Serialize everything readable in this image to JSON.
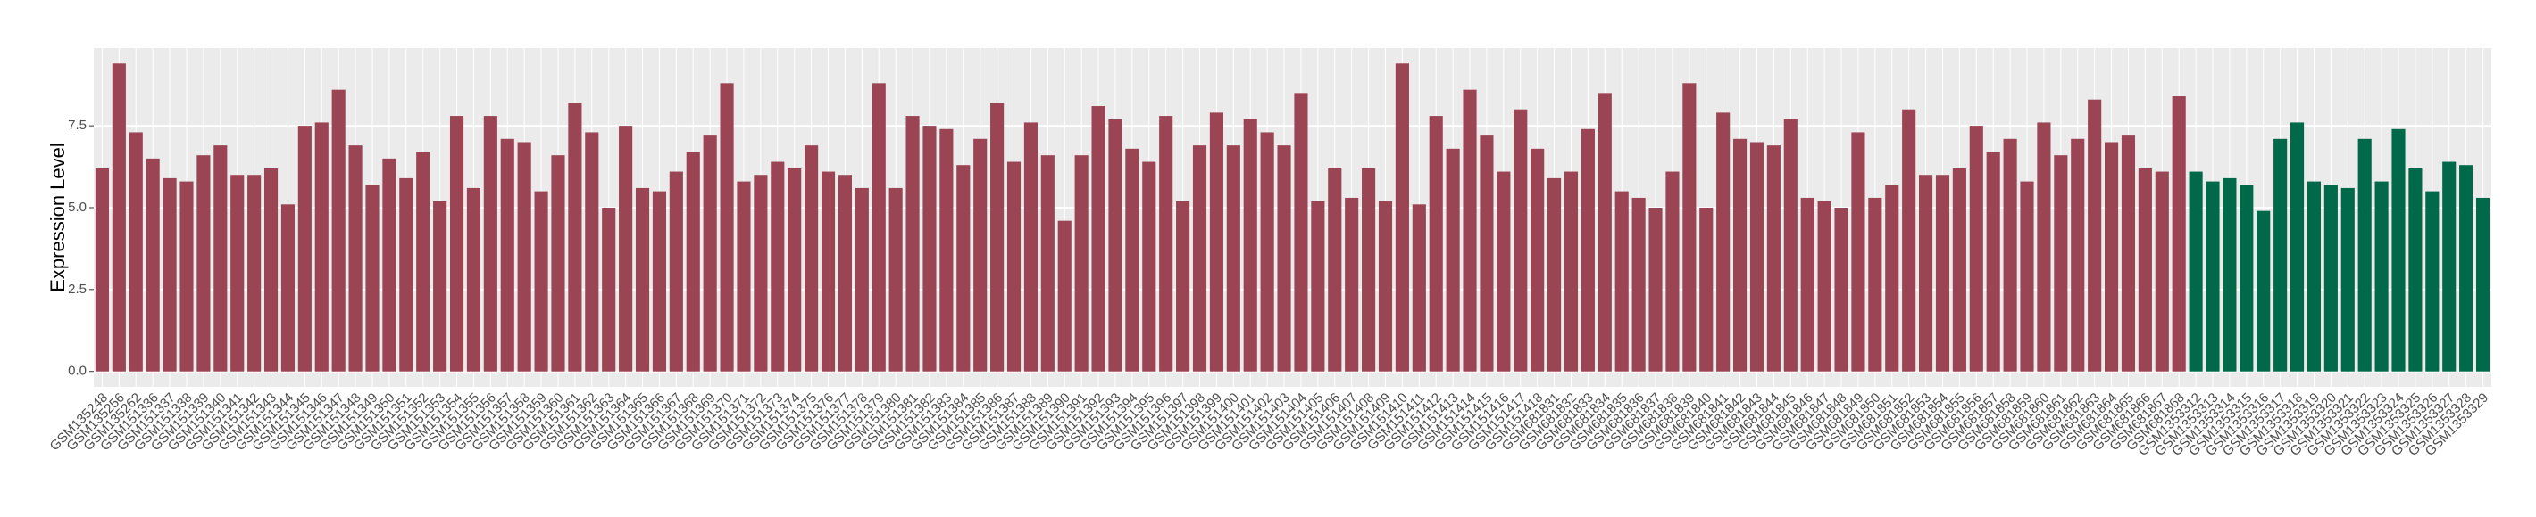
{
  "chart_data": {
    "type": "bar",
    "y_label": "Expression Level",
    "categories": [
      "GSM135248",
      "GSM135256",
      "GSM135262",
      "GSM151336",
      "GSM151337",
      "GSM151338",
      "GSM151339",
      "GSM151340",
      "GSM151341",
      "GSM151342",
      "GSM151343",
      "GSM151344",
      "GSM151345",
      "GSM151346",
      "GSM151347",
      "GSM151348",
      "GSM151349",
      "GSM151350",
      "GSM151351",
      "GSM151352",
      "GSM151353",
      "GSM151354",
      "GSM151355",
      "GSM151356",
      "GSM151357",
      "GSM151358",
      "GSM151359",
      "GSM151360",
      "GSM151361",
      "GSM151362",
      "GSM151363",
      "GSM151364",
      "GSM151365",
      "GSM151366",
      "GSM151367",
      "GSM151368",
      "GSM151369",
      "GSM151370",
      "GSM151371",
      "GSM151372",
      "GSM151373",
      "GSM151374",
      "GSM151375",
      "GSM151376",
      "GSM151377",
      "GSM151378",
      "GSM151379",
      "GSM151380",
      "GSM151381",
      "GSM151382",
      "GSM151383",
      "GSM151384",
      "GSM151385",
      "GSM151386",
      "GSM151387",
      "GSM151388",
      "GSM151389",
      "GSM151390",
      "GSM151391",
      "GSM151392",
      "GSM151393",
      "GSM151394",
      "GSM151395",
      "GSM151396",
      "GSM151397",
      "GSM151398",
      "GSM151399",
      "GSM151400",
      "GSM151401",
      "GSM151402",
      "GSM151403",
      "GSM151404",
      "GSM151405",
      "GSM151406",
      "GSM151407",
      "GSM151408",
      "GSM151409",
      "GSM151410",
      "GSM151411",
      "GSM151412",
      "GSM151413",
      "GSM151414",
      "GSM151415",
      "GSM151416",
      "GSM151417",
      "GSM151418",
      "GSM681831",
      "GSM681832",
      "GSM681833",
      "GSM681834",
      "GSM681835",
      "GSM681836",
      "GSM681837",
      "GSM681838",
      "GSM681839",
      "GSM681840",
      "GSM681841",
      "GSM681842",
      "GSM681843",
      "GSM681844",
      "GSM681845",
      "GSM681846",
      "GSM681847",
      "GSM681848",
      "GSM681849",
      "GSM681850",
      "GSM681851",
      "GSM681852",
      "GSM681853",
      "GSM681854",
      "GSM681855",
      "GSM681856",
      "GSM681857",
      "GSM681858",
      "GSM681859",
      "GSM681860",
      "GSM681861",
      "GSM681862",
      "GSM681863",
      "GSM681864",
      "GSM681865",
      "GSM681866",
      "GSM681867",
      "GSM681868",
      "GSM1353312",
      "GSM1353313",
      "GSM1353314",
      "GSM1353315",
      "GSM1353316",
      "GSM1353317",
      "GSM1353318",
      "GSM1353319",
      "GSM1353320",
      "GSM1353321",
      "GSM1353322",
      "GSM1353323",
      "GSM1353324",
      "GSM1353325",
      "GSM1353326",
      "GSM1353327",
      "GSM1353328",
      "GSM1353329"
    ],
    "values": [
      6.2,
      9.4,
      7.3,
      6.5,
      5.9,
      5.8,
      6.6,
      6.9,
      6.0,
      6.0,
      6.2,
      5.1,
      7.5,
      7.6,
      8.6,
      6.9,
      5.7,
      6.5,
      5.9,
      6.7,
      5.2,
      7.8,
      5.6,
      7.8,
      7.1,
      7.0,
      5.5,
      6.6,
      8.2,
      7.3,
      5.0,
      7.5,
      5.6,
      5.5,
      6.1,
      6.7,
      7.2,
      8.8,
      5.8,
      6.0,
      6.4,
      6.2,
      6.9,
      6.1,
      6.0,
      5.6,
      8.8,
      5.6,
      7.8,
      7.5,
      7.4,
      6.3,
      7.1,
      8.2,
      6.4,
      7.6,
      6.6,
      4.6,
      6.6,
      8.1,
      7.7,
      6.8,
      6.4,
      7.8,
      5.2,
      6.9,
      7.9,
      6.9,
      7.7,
      7.3,
      6.9,
      8.5,
      5.2,
      6.2,
      5.3,
      6.2,
      5.2,
      9.4,
      5.1,
      7.8,
      6.8,
      8.6,
      7.2,
      6.1,
      8.0,
      6.8,
      5.9,
      6.1,
      7.4,
      8.5,
      5.5,
      5.3,
      5.0,
      6.1,
      8.8,
      5.0,
      7.9,
      7.1,
      7.0,
      6.9,
      7.7,
      5.3,
      5.2,
      5.0,
      7.3,
      5.3,
      5.7,
      8.0,
      6.0,
      6.0,
      6.2,
      7.5,
      6.7,
      7.1,
      5.8,
      7.6,
      6.6,
      7.1,
      8.3,
      7.0,
      7.2,
      6.2,
      6.1,
      8.4,
      6.1,
      5.8,
      5.9,
      5.7,
      4.9,
      7.1,
      7.6,
      5.8,
      5.7,
      5.6,
      7.1,
      5.8,
      7.4,
      6.2,
      5.5,
      6.4,
      6.3,
      5.3
    ],
    "colors": [
      "#9b4453",
      "#9b4453",
      "#9b4453",
      "#9b4453",
      "#9b4453",
      "#9b4453",
      "#9b4453",
      "#9b4453",
      "#9b4453",
      "#9b4453",
      "#9b4453",
      "#9b4453",
      "#9b4453",
      "#9b4453",
      "#9b4453",
      "#9b4453",
      "#9b4453",
      "#9b4453",
      "#9b4453",
      "#9b4453",
      "#9b4453",
      "#9b4453",
      "#9b4453",
      "#9b4453",
      "#9b4453",
      "#9b4453",
      "#9b4453",
      "#9b4453",
      "#9b4453",
      "#9b4453",
      "#9b4453",
      "#9b4453",
      "#9b4453",
      "#9b4453",
      "#9b4453",
      "#9b4453",
      "#9b4453",
      "#9b4453",
      "#9b4453",
      "#9b4453",
      "#9b4453",
      "#9b4453",
      "#9b4453",
      "#9b4453",
      "#9b4453",
      "#9b4453",
      "#9b4453",
      "#9b4453",
      "#9b4453",
      "#9b4453",
      "#9b4453",
      "#9b4453",
      "#9b4453",
      "#9b4453",
      "#9b4453",
      "#9b4453",
      "#9b4453",
      "#9b4453",
      "#9b4453",
      "#9b4453",
      "#9b4453",
      "#9b4453",
      "#9b4453",
      "#9b4453",
      "#9b4453",
      "#9b4453",
      "#9b4453",
      "#9b4453",
      "#9b4453",
      "#9b4453",
      "#9b4453",
      "#9b4453",
      "#9b4453",
      "#9b4453",
      "#9b4453",
      "#9b4453",
      "#9b4453",
      "#9b4453",
      "#9b4453",
      "#9b4453",
      "#9b4453",
      "#9b4453",
      "#9b4453",
      "#9b4453",
      "#9b4453",
      "#9b4453",
      "#9b4453",
      "#9b4453",
      "#9b4453",
      "#9b4453",
      "#9b4453",
      "#9b4453",
      "#9b4453",
      "#9b4453",
      "#9b4453",
      "#9b4453",
      "#9b4453",
      "#9b4453",
      "#9b4453",
      "#9b4453",
      "#9b4453",
      "#9b4453",
      "#9b4453",
      "#9b4453",
      "#9b4453",
      "#9b4453",
      "#9b4453",
      "#9b4453",
      "#9b4453",
      "#9b4453",
      "#9b4453",
      "#9b4453",
      "#9b4453",
      "#9b4453",
      "#9b4453",
      "#9b4453",
      "#9b4453",
      "#9b4453",
      "#9b4453",
      "#9b4453",
      "#9b4453",
      "#9b4453",
      "#9b4453",
      "#9b4453",
      "#00694a",
      "#00694a",
      "#00694a",
      "#00694a",
      "#00694a",
      "#00694a",
      "#00694a",
      "#00694a",
      "#00694a",
      "#00694a",
      "#00694a",
      "#00694a",
      "#00694a",
      "#00694a",
      "#00694a",
      "#00694a",
      "#00694a",
      "#00694a"
    ],
    "ylim": [
      -0.47,
      9.87
    ],
    "yticks": [
      {
        "value": 0,
        "label": "0.0"
      },
      {
        "value": 2.5,
        "label": "2.5"
      },
      {
        "value": 5,
        "label": "5.0"
      },
      {
        "value": 7.5,
        "label": "7.5"
      }
    ],
    "grid": true
  }
}
